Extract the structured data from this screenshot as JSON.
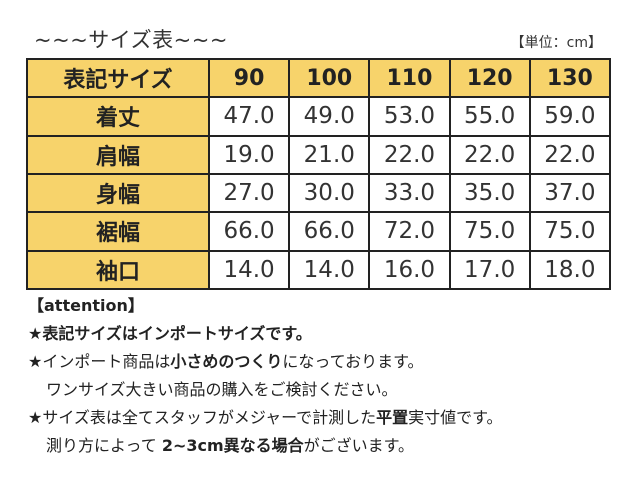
{
  "header": {
    "title": "~~~サイズ表~~~",
    "unit": "【単位：cm】"
  },
  "table": {
    "corner": "表記サイズ",
    "sizes": [
      "90",
      "100",
      "110",
      "120",
      "130"
    ],
    "rows": [
      {
        "label": "着丈",
        "values": [
          "47.0",
          "49.0",
          "53.0",
          "55.0",
          "59.0"
        ]
      },
      {
        "label": "肩幅",
        "values": [
          "19.0",
          "21.0",
          "22.0",
          "22.0",
          "22.0"
        ]
      },
      {
        "label": "身幅",
        "values": [
          "27.0",
          "30.0",
          "33.0",
          "35.0",
          "37.0"
        ]
      },
      {
        "label": "裾幅",
        "values": [
          "66.0",
          "66.0",
          "72.0",
          "75.0",
          "75.0"
        ]
      },
      {
        "label": "袖口",
        "values": [
          "14.0",
          "14.0",
          "16.0",
          "17.0",
          "18.0"
        ]
      }
    ]
  },
  "notes": {
    "heading": "【attention】",
    "line1": "★表記サイズはインポートサイズです。",
    "line2_a": "★インポート商品は",
    "line2_b": "小さめのつくり",
    "line2_c": "になっております。",
    "line3": "ワンサイズ大きい商品の購入をご検討ください。",
    "line4_a": "★サイズ表は全てスタッフがメジャーで計測した",
    "line4_b": "平置",
    "line4_c": "実寸値です。",
    "line5_a": "測り方によって ",
    "line5_b": "2~3cm異なる場合",
    "line5_c": "がございます。"
  },
  "colors": {
    "header_fill": "#f7d36b",
    "border": "#222222"
  }
}
